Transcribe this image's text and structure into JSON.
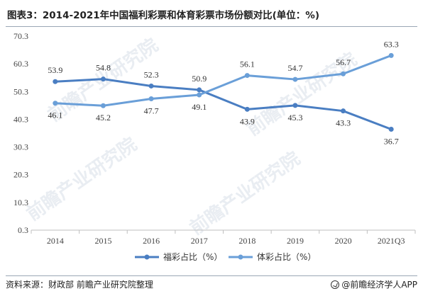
{
  "title": "图表3：2014-2021年中国福利彩票和体育彩票市场份额对比(单位：%)",
  "source": "资料来源：财政部 前瞻产业研究院整理",
  "brand": "@前瞻经济学人APP",
  "watermark": "前瞻产业研究院",
  "colors": {
    "welfare": "#4a7ec2",
    "sports": "#6a9fd8",
    "axis": "#bfbfbf"
  },
  "chart_data": {
    "type": "line",
    "title": "图表3：2014-2021年中国福利彩票和体育彩票市场份额对比(单位：%)",
    "categories": [
      "2014",
      "2015",
      "2016",
      "2017",
      "2018",
      "2019",
      "2020",
      "2021Q3"
    ],
    "y_ticks": [
      "0.3",
      "10.3",
      "20.3",
      "30.3",
      "40.3",
      "50.3",
      "60.3",
      "70.3"
    ],
    "ylim": [
      0.3,
      70.3
    ],
    "grid": false,
    "legend_position": "bottom",
    "series": [
      {
        "name": "福彩占比（%）",
        "values": [
          53.9,
          54.8,
          52.3,
          50.9,
          43.9,
          45.3,
          43.3,
          36.7
        ],
        "labels": [
          "53.9",
          "54.8",
          "52.3",
          "50.9",
          "43.9",
          "45.3",
          "43.3",
          "36.7"
        ]
      },
      {
        "name": "体彩占比（%）",
        "values": [
          46.1,
          45.2,
          47.7,
          49.1,
          56.1,
          54.7,
          56.7,
          63.3
        ],
        "labels": [
          "46.1",
          "45.2",
          "47.7",
          "49.1",
          "56.1",
          "54.7",
          "56.7",
          "63.3"
        ]
      }
    ]
  }
}
